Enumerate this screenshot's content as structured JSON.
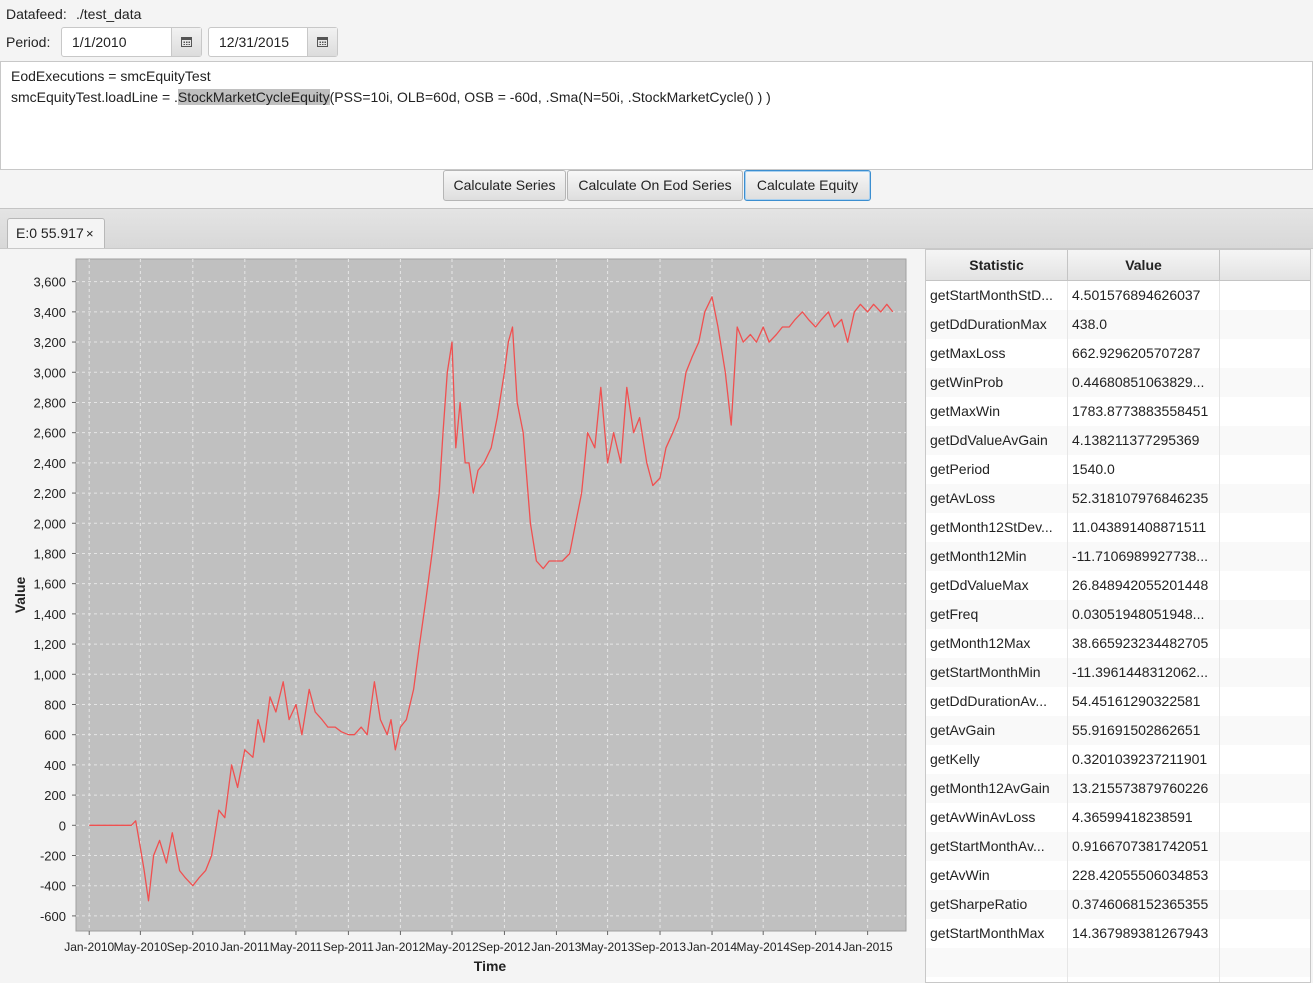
{
  "datafeed": {
    "label": "Datafeed:",
    "value": "./test_data"
  },
  "period": {
    "label": "Period:",
    "start": "1/1/2010",
    "end": "12/31/2015"
  },
  "editor": {
    "line1": "EodExecutions = smcEquityTest",
    "line2_prefix": "smcEquityTest.loadLine = .",
    "line2_highlight": "StockMarketCycleEquity",
    "line2_suffix": "(PSS=10i, OLB=60d, OSB = -60d, .Sma(N=50i, .StockMarketCycle() ) )"
  },
  "buttons": {
    "calc_series": "Calculate Series",
    "calc_eod": "Calculate On Eod Series",
    "calc_equity": "Calculate Equity"
  },
  "tab": {
    "label": "E:0 55.917",
    "close": "×"
  },
  "table": {
    "headers": [
      "Statistic",
      "Value"
    ],
    "rows": [
      {
        "stat": "getStartMonthStD...",
        "value": "4.501576894626037"
      },
      {
        "stat": "getDdDurationMax",
        "value": "438.0"
      },
      {
        "stat": "getMaxLoss",
        "value": "662.9296205707287"
      },
      {
        "stat": "getWinProb",
        "value": "0.44680851063829..."
      },
      {
        "stat": "getMaxWin",
        "value": "1783.8773883558451"
      },
      {
        "stat": "getDdValueAvGain",
        "value": "4.138211377295369"
      },
      {
        "stat": "getPeriod",
        "value": "1540.0"
      },
      {
        "stat": "getAvLoss",
        "value": "52.318107976846235"
      },
      {
        "stat": "getMonth12StDev...",
        "value": "11.043891408871511"
      },
      {
        "stat": "getMonth12Min",
        "value": "-11.7106989927738..."
      },
      {
        "stat": "getDdValueMax",
        "value": "26.848942055201448"
      },
      {
        "stat": "getFreq",
        "value": "0.03051948051948..."
      },
      {
        "stat": "getMonth12Max",
        "value": "38.665923234482705"
      },
      {
        "stat": "getStartMonthMin",
        "value": "-11.3961448312062..."
      },
      {
        "stat": "getDdDurationAv...",
        "value": "54.45161290322581"
      },
      {
        "stat": "getAvGain",
        "value": "55.91691502862651"
      },
      {
        "stat": "getKelly",
        "value": "0.3201039237211901"
      },
      {
        "stat": "getMonth12AvGain",
        "value": "13.215573879760226"
      },
      {
        "stat": "getAvWinAvLoss",
        "value": "4.36599418238591"
      },
      {
        "stat": "getStartMonthAv...",
        "value": "0.9166707381742051"
      },
      {
        "stat": "getAvWin",
        "value": "228.42055506034853"
      },
      {
        "stat": "getSharpeRatio",
        "value": "0.3746068152365355"
      },
      {
        "stat": "getStartMonthMax",
        "value": "14.367989381267943"
      }
    ]
  },
  "colors": {
    "series": "#f05050",
    "plot_bg": "#c0c0c0",
    "grid": "#e6e6e6",
    "focus": "#3b8ed0"
  },
  "chart_data": {
    "type": "line",
    "xlabel": "Time",
    "ylabel": "Value",
    "ylim": [
      -700,
      3750
    ],
    "xlim": [
      "2009-12-01",
      "2015-04-01"
    ],
    "grid": true,
    "yticks": [
      -600,
      -400,
      -200,
      0,
      200,
      400,
      600,
      800,
      1000,
      1200,
      1400,
      1600,
      1800,
      2000,
      2200,
      2400,
      2600,
      2800,
      3000,
      3200,
      3400,
      3600
    ],
    "xticks": [
      "Jan-2010",
      "May-2010",
      "Sep-2010",
      "Jan-2011",
      "May-2011",
      "Sep-2011",
      "Jan-2012",
      "May-2012",
      "Sep-2012",
      "Jan-2013",
      "May-2013",
      "Sep-2013",
      "Jan-2014",
      "May-2014",
      "Sep-2014",
      "Jan-2015"
    ],
    "series": [
      {
        "x": [
          "2010-01-01",
          "2010-02-01",
          "2010-03-01",
          "2010-04-01",
          "2010-04-10",
          "2010-04-20",
          "2010-05-01",
          "2010-05-10",
          "2010-05-20",
          "2010-06-01",
          "2010-06-15",
          "2010-07-01",
          "2010-07-15",
          "2010-08-01",
          "2010-08-15",
          "2010-09-01",
          "2010-09-15",
          "2010-10-01",
          "2010-10-15",
          "2010-11-01",
          "2010-11-15",
          "2010-12-01",
          "2010-12-15",
          "2011-01-01",
          "2011-01-20",
          "2011-02-01",
          "2011-02-15",
          "2011-03-01",
          "2011-03-15",
          "2011-04-01",
          "2011-04-15",
          "2011-05-01",
          "2011-05-15",
          "2011-06-01",
          "2011-06-15",
          "2011-07-01",
          "2011-07-15",
          "2011-08-01",
          "2011-08-15",
          "2011-09-01",
          "2011-09-15",
          "2011-10-01",
          "2011-10-15",
          "2011-11-01",
          "2011-11-15",
          "2011-12-01",
          "2011-12-10",
          "2011-12-20",
          "2012-01-01",
          "2012-01-15",
          "2012-02-01",
          "2012-02-15",
          "2012-03-01",
          "2012-03-15",
          "2012-04-01",
          "2012-04-10",
          "2012-04-20",
          "2012-05-01",
          "2012-05-10",
          "2012-05-20",
          "2012-06-01",
          "2012-06-10",
          "2012-06-20",
          "2012-07-01",
          "2012-07-15",
          "2012-08-01",
          "2012-08-15",
          "2012-09-01",
          "2012-09-10",
          "2012-09-20",
          "2012-10-01",
          "2012-10-15",
          "2012-11-01",
          "2012-11-15",
          "2012-12-01",
          "2012-12-15",
          "2013-01-01",
          "2013-01-15",
          "2013-02-01",
          "2013-02-15",
          "2013-03-01",
          "2013-03-15",
          "2013-04-01",
          "2013-04-15",
          "2013-05-01",
          "2013-05-15",
          "2013-06-01",
          "2013-06-15",
          "2013-07-01",
          "2013-07-15",
          "2013-08-01",
          "2013-08-15",
          "2013-09-01",
          "2013-09-15",
          "2013-10-01",
          "2013-10-15",
          "2013-11-01",
          "2013-11-15",
          "2013-12-01",
          "2013-12-15",
          "2014-01-01",
          "2014-01-15",
          "2014-02-01",
          "2014-02-15",
          "2014-03-01",
          "2014-03-15",
          "2014-04-01",
          "2014-04-15",
          "2014-05-01",
          "2014-05-15",
          "2014-06-01",
          "2014-06-15",
          "2014-07-01",
          "2014-07-15",
          "2014-08-01",
          "2014-08-15",
          "2014-09-01",
          "2014-09-15",
          "2014-10-01",
          "2014-10-15",
          "2014-11-01",
          "2014-11-15",
          "2014-12-01",
          "2014-12-15",
          "2015-01-01",
          "2015-01-15",
          "2015-02-01",
          "2015-02-15",
          "2015-03-01"
        ],
        "y": [
          0,
          0,
          0,
          0,
          0,
          30,
          -150,
          -300,
          -500,
          -200,
          -100,
          -250,
          -50,
          -300,
          -350,
          -400,
          -350,
          -300,
          -200,
          100,
          50,
          400,
          250,
          500,
          450,
          700,
          550,
          850,
          750,
          950,
          700,
          800,
          600,
          900,
          750,
          700,
          650,
          650,
          620,
          600,
          600,
          650,
          600,
          950,
          700,
          600,
          700,
          500,
          650,
          700,
          900,
          1200,
          1500,
          1800,
          2200,
          2600,
          3000,
          3200,
          2500,
          2800,
          2400,
          2400,
          2200,
          2350,
          2400,
          2500,
          2700,
          3000,
          3200,
          3300,
          2800,
          2600,
          2000,
          1750,
          1700,
          1750,
          1750,
          1750,
          1800,
          2000,
          2200,
          2600,
          2500,
          2900,
          2400,
          2600,
          2400,
          2900,
          2600,
          2700,
          2400,
          2250,
          2300,
          2500,
          2600,
          2700,
          3000,
          3100,
          3200,
          3400,
          3500,
          3300,
          3000,
          2650,
          3300,
          3200,
          3250,
          3200,
          3300,
          3200,
          3250,
          3300,
          3300,
          3350,
          3400,
          3350,
          3300,
          3350,
          3400,
          3300,
          3350,
          3200,
          3400,
          3450,
          3400,
          3450,
          3400,
          3450,
          3400
        ]
      }
    ]
  }
}
